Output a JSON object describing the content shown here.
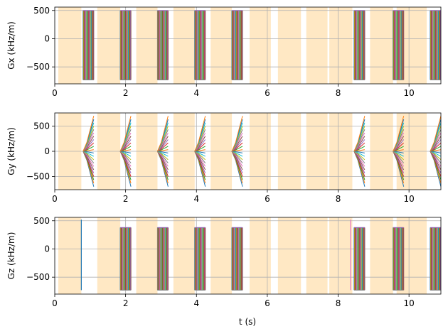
{
  "figure": {
    "xlabel": "t (s)"
  },
  "colors": {
    "shade": "#ffe8c4",
    "grid": "#b0b0b0",
    "axis": "#000000",
    "palette": [
      "#1f77b4",
      "#ff7f0e",
      "#2ca02c",
      "#d62728",
      "#9467bd",
      "#8c564b",
      "#e377c2",
      "#7f7f7f",
      "#bcbd22",
      "#17becf"
    ]
  },
  "chart_data": [
    {
      "type": "line",
      "ylabel": "Gx (kHz/m)",
      "xlim": [
        0,
        10.9
      ],
      "ylim": [
        -800,
        560
      ],
      "xticks": [
        0,
        2,
        4,
        6,
        8,
        10
      ],
      "yticks": [
        -500,
        0,
        500
      ],
      "grid": true,
      "shaded_intervals": [
        [
          0.1,
          0.75
        ],
        [
          1.2,
          1.85
        ],
        [
          2.3,
          2.9
        ],
        [
          3.35,
          3.95
        ],
        [
          4.4,
          5.0
        ],
        [
          5.5,
          6.1
        ],
        [
          6.3,
          6.95
        ],
        [
          7.1,
          7.7
        ],
        [
          7.75,
          8.4
        ],
        [
          8.9,
          9.55
        ],
        [
          9.65,
          10.5
        ]
      ],
      "readout_blocks": [
        {
          "start": 0.8,
          "end": 1.1,
          "low": -730,
          "high": 500
        },
        {
          "start": 1.85,
          "end": 2.15,
          "low": -730,
          "high": 500
        },
        {
          "start": 2.9,
          "end": 3.2,
          "low": -730,
          "high": 500
        },
        {
          "start": 3.95,
          "end": 4.25,
          "low": -730,
          "high": 500
        },
        {
          "start": 5.0,
          "end": 5.3,
          "low": -730,
          "high": 500
        },
        {
          "start": 8.45,
          "end": 8.75,
          "low": -730,
          "high": 500
        },
        {
          "start": 9.55,
          "end": 9.85,
          "low": -730,
          "high": 500
        },
        {
          "start": 10.6,
          "end": 10.9,
          "low": -730,
          "high": 500
        }
      ]
    },
    {
      "type": "line",
      "ylabel": "Gy (kHz/m)",
      "xlim": [
        0,
        10.9
      ],
      "ylim": [
        -760,
        760
      ],
      "xticks": [
        0,
        2,
        4,
        6,
        8,
        10
      ],
      "yticks": [
        -500,
        0,
        500
      ],
      "grid": true,
      "shaded_intervals": [
        [
          0.1,
          0.75
        ],
        [
          1.2,
          1.85
        ],
        [
          2.3,
          2.9
        ],
        [
          3.35,
          3.95
        ],
        [
          4.4,
          5.0
        ],
        [
          5.5,
          6.1
        ],
        [
          6.3,
          6.95
        ],
        [
          7.1,
          7.7
        ],
        [
          7.75,
          8.4
        ],
        [
          8.9,
          9.55
        ],
        [
          9.65,
          10.5
        ]
      ],
      "phase_fans": [
        {
          "start": 0.8,
          "end": 1.1,
          "amplitude": 700
        },
        {
          "start": 1.85,
          "end": 2.15,
          "amplitude": 700
        },
        {
          "start": 2.9,
          "end": 3.2,
          "amplitude": 700
        },
        {
          "start": 3.95,
          "end": 4.25,
          "amplitude": 700
        },
        {
          "start": 5.0,
          "end": 5.3,
          "amplitude": 700
        },
        {
          "start": 8.45,
          "end": 8.75,
          "amplitude": 700
        },
        {
          "start": 9.55,
          "end": 9.85,
          "amplitude": 700
        },
        {
          "start": 10.6,
          "end": 10.9,
          "amplitude": 700
        }
      ]
    },
    {
      "type": "line",
      "ylabel": "Gz (kHz/m)",
      "xlim": [
        0,
        10.9
      ],
      "ylim": [
        -800,
        560
      ],
      "xticks": [
        0,
        2,
        4,
        6,
        8,
        10
      ],
      "yticks": [
        -500,
        0,
        500
      ],
      "grid": true,
      "shaded_intervals": [
        [
          0.1,
          0.75
        ],
        [
          1.2,
          1.85
        ],
        [
          2.3,
          2.9
        ],
        [
          3.35,
          3.95
        ],
        [
          4.4,
          5.0
        ],
        [
          5.5,
          6.1
        ],
        [
          6.3,
          6.95
        ],
        [
          7.1,
          7.7
        ],
        [
          7.75,
          8.4
        ],
        [
          8.9,
          9.55
        ],
        [
          9.65,
          10.5
        ]
      ],
      "spikes": [
        {
          "t": 0.75,
          "low": -730,
          "high": 520
        },
        {
          "t": 8.35,
          "low": -730,
          "high": 520
        }
      ],
      "readout_blocks": [
        {
          "start": 1.85,
          "end": 2.15,
          "low": -730,
          "high": 380
        },
        {
          "start": 2.9,
          "end": 3.2,
          "low": -730,
          "high": 380
        },
        {
          "start": 3.95,
          "end": 4.25,
          "low": -730,
          "high": 380
        },
        {
          "start": 5.0,
          "end": 5.3,
          "low": -730,
          "high": 380
        },
        {
          "start": 8.45,
          "end": 8.75,
          "low": -730,
          "high": 380
        },
        {
          "start": 9.55,
          "end": 9.85,
          "low": -730,
          "high": 380
        },
        {
          "start": 10.6,
          "end": 10.9,
          "low": -730,
          "high": 380
        }
      ]
    }
  ]
}
